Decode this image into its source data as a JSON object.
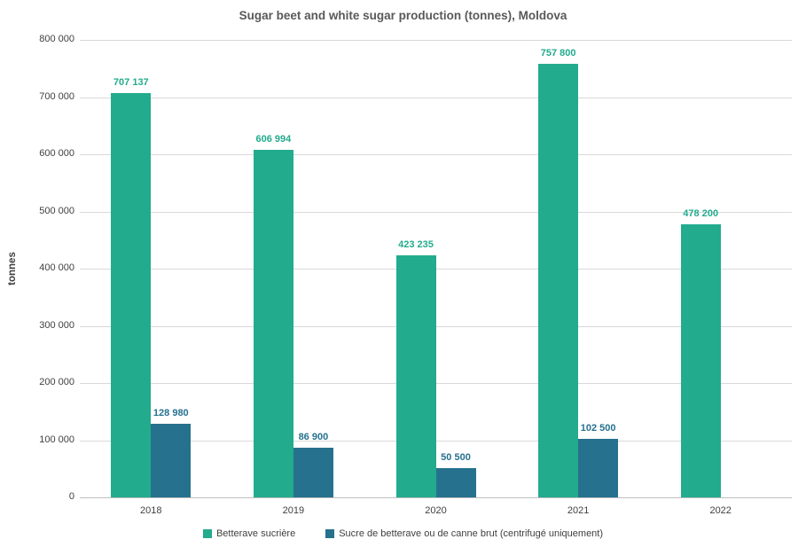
{
  "title": "Sugar beet and white sugar production (tonnes), Moldova",
  "chart_data": {
    "type": "bar",
    "title": "Sugar beet and white sugar production (tonnes), Moldova",
    "categories": [
      "2018",
      "2019",
      "2020",
      "2021",
      "2022"
    ],
    "series": [
      {
        "name": "Betterave sucrière",
        "color": "#22ab8d",
        "values": [
          707137,
          606994,
          423235,
          757800,
          478200
        ],
        "labels": [
          "707 137",
          "606 994",
          "423 235",
          "757 800",
          "478 200"
        ]
      },
      {
        "name": "Sucre de betterave ou de canne brut (centrifugé uniquement)",
        "color": "#26718e",
        "values": [
          128980,
          86900,
          50500,
          102500,
          null
        ],
        "labels": [
          "128 980",
          "86 900",
          "50 500",
          "102 500",
          ""
        ]
      }
    ],
    "xlabel": "",
    "ylabel": "tonnes",
    "ylim": [
      0,
      800000
    ],
    "ytick_step": 100000,
    "ytick_labels": [
      "0",
      "100 000",
      "200 000",
      "300 000",
      "400 000",
      "500 000",
      "600 000",
      "700 000",
      "800 000"
    ],
    "grid": true,
    "legend_position": "bottom"
  }
}
